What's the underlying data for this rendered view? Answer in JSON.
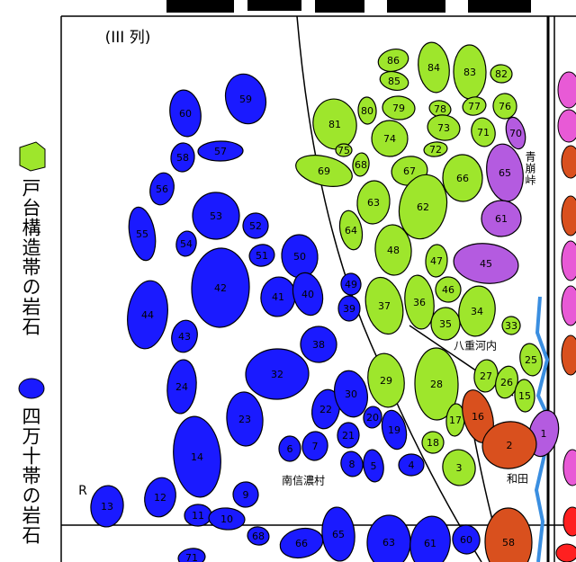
{
  "column_label": "(III 列)",
  "legend": [
    {
      "label": "戸台構造帯の岩石"
    },
    {
      "label": "四万十帯の岩石"
    }
  ],
  "places": {
    "pass": "青崩峠",
    "yaegochi": "八重河内",
    "village": "南信濃村",
    "wada": "和田",
    "r": "R"
  },
  "stones": {
    "green": [
      86,
      84,
      83,
      82,
      85,
      81,
      80,
      79,
      78,
      77,
      76,
      74,
      73,
      71,
      72,
      75,
      68,
      69,
      67,
      66,
      63,
      62,
      64,
      48,
      47,
      46,
      37,
      36,
      35,
      34,
      33,
      29,
      28,
      27,
      26,
      25,
      15,
      17,
      18,
      3
    ],
    "purple": [
      70,
      65,
      61,
      45,
      1
    ],
    "red": [
      16,
      2,
      58
    ],
    "blue": [
      59,
      60,
      57,
      58,
      56,
      55,
      53,
      52,
      54,
      51,
      50,
      42,
      41,
      40,
      49,
      39,
      44,
      43,
      38,
      32,
      24,
      22,
      30,
      23,
      21,
      20,
      19,
      14,
      6,
      7,
      8,
      5,
      4,
      13,
      12,
      9,
      11,
      10,
      68,
      66,
      65,
      63,
      61,
      60,
      71
    ]
  }
}
